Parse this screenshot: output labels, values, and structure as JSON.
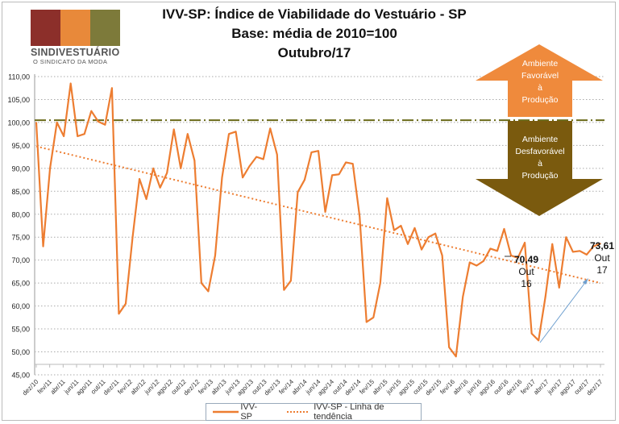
{
  "logo": {
    "name": "SINDIVESTUÁRIO",
    "tagline": "O SINDICATO DA MODA",
    "colors": [
      "#8c2f2a",
      "#e8893a",
      "#7d7a3a"
    ]
  },
  "title_lines": [
    "IVV-SP: Índice de Viabilidade do Vestuário - SP",
    "Base: média de 2010=100",
    "Outubro/17"
  ],
  "arrows": {
    "up": {
      "lines": [
        "Ambiente",
        "Favorável",
        "à",
        "Produção"
      ],
      "color": "#ef8a3c"
    },
    "down": {
      "lines": [
        "Ambiente",
        "Desfavorável",
        "à",
        "Produção"
      ],
      "color": "#7a5a0e"
    }
  },
  "annotations": {
    "oct16": {
      "value": "70,49",
      "lines": [
        "Out",
        "16"
      ]
    },
    "oct17": {
      "value": "73,61",
      "lines": [
        "Out",
        "17"
      ]
    }
  },
  "legend": {
    "series": "IVV-SP",
    "trend": "IVV-SP - Linha de tendência"
  },
  "chart_data": {
    "type": "line",
    "title": "IVV-SP: Índice de Viabilidade do Vestuário - SP",
    "ylim": [
      45,
      110
    ],
    "yticks": [
      "45,00",
      "50,00",
      "55,00",
      "60,00",
      "65,00",
      "70,00",
      "75,00",
      "80,00",
      "85,00",
      "90,00",
      "95,00",
      "100,00",
      "105,00",
      "110,00"
    ],
    "xlabels": [
      "dez/10",
      "fev/11",
      "abr/11",
      "jun/11",
      "ago/11",
      "out/11",
      "dez/11",
      "fev/12",
      "abr/12",
      "jun/12",
      "ago/12",
      "out/12",
      "dez/12",
      "fev/13",
      "abr/13",
      "jun/13",
      "ago/13",
      "out/13",
      "dez/13",
      "fev/14",
      "abr/14",
      "jun/14",
      "ago/14",
      "out/14",
      "dez/14",
      "fev/15",
      "abr/15",
      "jun/15",
      "ago/15",
      "out/15",
      "dez/15",
      "fev/16",
      "abr/16",
      "jun/16",
      "ago/16",
      "out/16",
      "dez/16",
      "fev/17",
      "abr/17",
      "jun/17",
      "ago/17",
      "out/17",
      "dez/17"
    ],
    "series": [
      {
        "name": "IVV-SP",
        "color": "#ed7d31",
        "values": [
          100,
          73,
          90,
          100,
          97,
          108.5,
          97,
          97.5,
          102.5,
          100.2,
          99.5,
          107.5,
          58.3,
          60.5,
          75,
          87.7,
          83.3,
          90,
          85.8,
          89,
          98.5,
          90,
          97.5,
          91.7,
          65,
          63.2,
          71,
          88,
          97.5,
          98,
          88,
          90.5,
          92.5,
          92,
          98.7,
          93,
          63.5,
          65.5,
          84.8,
          87.5,
          93.5,
          93.8,
          80.5,
          88.5,
          88.7,
          91.3,
          91,
          79.5,
          56.5,
          57.5,
          65,
          83.5,
          76.5,
          77.5,
          73.5,
          77,
          72.3,
          75,
          75.8,
          71,
          51,
          49,
          62,
          69.5,
          68.8,
          69.8,
          72.5,
          72,
          76.8,
          71,
          70.49,
          73.8,
          54,
          52.5,
          62,
          73.5,
          64,
          75,
          71.8,
          72,
          71.2,
          73,
          73.61
        ]
      }
    ],
    "trend": {
      "name": "IVV-SP - Linha de tendência",
      "start": 94.8,
      "end": 65.0,
      "color": "#ed7d31"
    },
    "reference": {
      "value": 100.5,
      "color": "#6b6b1a"
    },
    "grid": true,
    "legend_position": "bottom"
  }
}
